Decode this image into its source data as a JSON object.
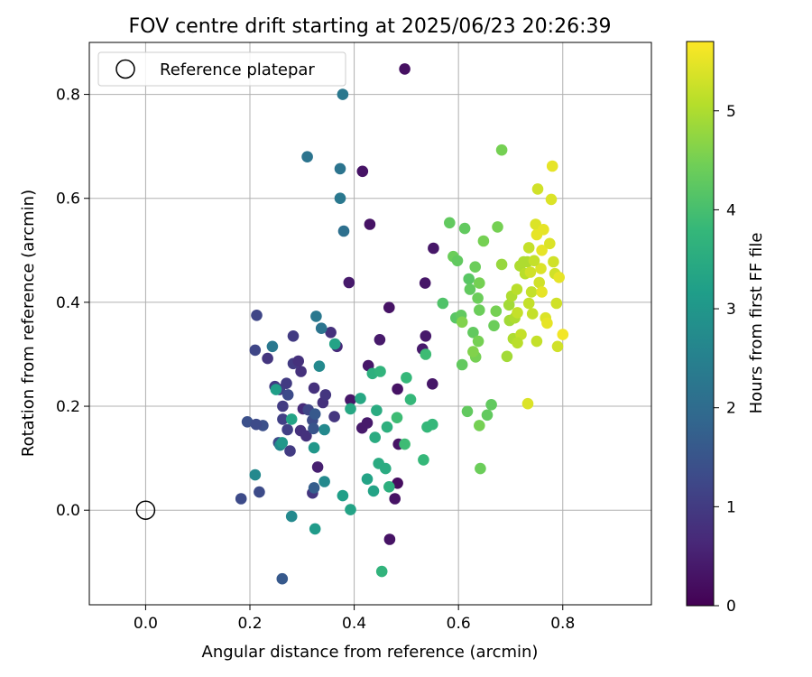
{
  "chart_data": {
    "type": "scatter",
    "title": "FOV centre drift starting at 2025/06/23 20:26:39",
    "xlabel": "Angular distance from reference (arcmin)",
    "ylabel": "Rotation from reference (arcmin)",
    "xlim": [
      -0.108,
      0.97
    ],
    "ylim": [
      -0.182,
      0.9
    ],
    "xticks": [
      "0.0",
      "0.2",
      "0.4",
      "0.6",
      "0.8"
    ],
    "yticks": [
      "0.0",
      "0.2",
      "0.4",
      "0.6",
      "0.8"
    ],
    "xtick_values": [
      0.0,
      0.2,
      0.4,
      0.6,
      0.8
    ],
    "ytick_values": [
      0.0,
      0.2,
      0.4,
      0.6,
      0.8
    ],
    "grid": true,
    "legend": {
      "placement": "top-left",
      "label": "Reference platepar",
      "marker": "open-circle"
    },
    "reference_point": {
      "x": 0.0,
      "y": 0.0
    },
    "colorbar": {
      "label": "Hours from first FF file",
      "colormap": "viridis",
      "range": [
        0,
        5.7
      ],
      "ticks": [
        "0",
        "1",
        "2",
        "3",
        "4",
        "5"
      ],
      "tick_values": [
        0,
        1,
        2,
        3,
        4,
        5
      ]
    },
    "colors": [
      "#440154",
      "#482878",
      "#3e4989",
      "#31688e",
      "#26828e",
      "#1f9e89",
      "#35b779",
      "#6ece58",
      "#b5de2b",
      "#fde725"
    ],
    "points": [
      [
        0.497,
        0.849,
        0.25
      ],
      [
        0.416,
        0.652,
        0.3
      ],
      [
        0.43,
        0.55,
        0.3
      ],
      [
        0.39,
        0.438,
        0.4
      ],
      [
        0.467,
        0.39,
        0.3
      ],
      [
        0.552,
        0.504,
        0.35
      ],
      [
        0.536,
        0.437,
        0.35
      ],
      [
        0.427,
        0.278,
        0.35
      ],
      [
        0.449,
        0.328,
        0.4
      ],
      [
        0.531,
        0.31,
        0.4
      ],
      [
        0.537,
        0.335,
        0.4
      ],
      [
        0.55,
        0.243,
        0.35
      ],
      [
        0.483,
        0.233,
        0.3
      ],
      [
        0.393,
        0.212,
        0.35
      ],
      [
        0.415,
        0.158,
        0.4
      ],
      [
        0.425,
        0.168,
        0.4
      ],
      [
        0.485,
        0.127,
        0.3
      ],
      [
        0.483,
        0.052,
        0.2
      ],
      [
        0.478,
        0.022,
        0.3
      ],
      [
        0.468,
        -0.056,
        0.3
      ],
      [
        0.367,
        0.315,
        0.7
      ],
      [
        0.355,
        0.342,
        0.8
      ],
      [
        0.34,
        0.207,
        0.8
      ],
      [
        0.345,
        0.222,
        0.9
      ],
      [
        0.362,
        0.18,
        0.9
      ],
      [
        0.323,
        0.235,
        0.8
      ],
      [
        0.33,
        0.083,
        0.5
      ],
      [
        0.32,
        0.033,
        0.9
      ],
      [
        0.213,
        0.375,
        1.2
      ],
      [
        0.21,
        0.308,
        1.2
      ],
      [
        0.225,
        0.163,
        1.4
      ],
      [
        0.234,
        0.292,
        0.9
      ],
      [
        0.248,
        0.238,
        1.0
      ],
      [
        0.257,
        0.232,
        1.1
      ],
      [
        0.263,
        0.2,
        1.0
      ],
      [
        0.27,
        0.244,
        1.0
      ],
      [
        0.273,
        0.222,
        1.3
      ],
      [
        0.263,
        0.175,
        1.1
      ],
      [
        0.255,
        0.13,
        1.3
      ],
      [
        0.272,
        0.155,
        1.1
      ],
      [
        0.277,
        0.114,
        1.0
      ],
      [
        0.283,
        0.282,
        1.0
      ],
      [
        0.283,
        0.335,
        1.0
      ],
      [
        0.293,
        0.287,
        0.8
      ],
      [
        0.298,
        0.267,
        0.8
      ],
      [
        0.302,
        0.195,
        0.7
      ],
      [
        0.297,
        0.153,
        0.8
      ],
      [
        0.308,
        0.143,
        0.8
      ],
      [
        0.312,
        0.193,
        1.2
      ],
      [
        0.32,
        0.173,
        1.3
      ],
      [
        0.322,
        0.157,
        1.5
      ],
      [
        0.325,
        0.185,
        1.6
      ],
      [
        0.195,
        0.17,
        1.4
      ],
      [
        0.212,
        0.165,
        1.3
      ],
      [
        0.218,
        0.035,
        1.3
      ],
      [
        0.183,
        0.022,
        1.3
      ],
      [
        0.262,
        -0.132,
        1.6
      ],
      [
        0.323,
        0.043,
        1.7
      ],
      [
        0.31,
        0.68,
        2.2
      ],
      [
        0.378,
        0.8,
        2.3
      ],
      [
        0.373,
        0.657,
        2.2
      ],
      [
        0.373,
        0.6,
        2.3
      ],
      [
        0.38,
        0.537,
        2.1
      ],
      [
        0.243,
        0.315,
        2.3
      ],
      [
        0.327,
        0.373,
        2.3
      ],
      [
        0.337,
        0.35,
        2.2
      ],
      [
        0.333,
        0.277,
        2.7
      ],
      [
        0.21,
        0.068,
        2.7
      ],
      [
        0.258,
        0.125,
        2.7
      ],
      [
        0.262,
        0.13,
        3.0
      ],
      [
        0.28,
        0.175,
        3.3
      ],
      [
        0.25,
        0.232,
        3.2
      ],
      [
        0.323,
        0.12,
        3.0
      ],
      [
        0.343,
        0.155,
        2.7
      ],
      [
        0.343,
        0.055,
        2.7
      ],
      [
        0.28,
        -0.012,
        2.7
      ],
      [
        0.325,
        -0.036,
        3.1
      ],
      [
        0.378,
        0.028,
        3.2
      ],
      [
        0.393,
        0.001,
        3.3
      ],
      [
        0.363,
        0.32,
        3.3
      ],
      [
        0.393,
        0.195,
        3.4
      ],
      [
        0.412,
        0.215,
        3.4
      ],
      [
        0.435,
        0.263,
        3.6
      ],
      [
        0.45,
        0.267,
        3.7
      ],
      [
        0.44,
        0.14,
        3.5
      ],
      [
        0.443,
        0.192,
        3.5
      ],
      [
        0.463,
        0.16,
        3.6
      ],
      [
        0.447,
        0.09,
        3.5
      ],
      [
        0.425,
        0.06,
        3.3
      ],
      [
        0.437,
        0.037,
        3.3
      ],
      [
        0.46,
        0.08,
        3.5
      ],
      [
        0.467,
        0.045,
        3.6
      ],
      [
        0.453,
        -0.118,
        3.7
      ],
      [
        0.482,
        0.178,
        3.9
      ],
      [
        0.497,
        0.127,
        3.9
      ],
      [
        0.5,
        0.255,
        3.8
      ],
      [
        0.508,
        0.213,
        3.8
      ],
      [
        0.533,
        0.097,
        3.8
      ],
      [
        0.537,
        0.3,
        3.9
      ],
      [
        0.54,
        0.16,
        3.8
      ],
      [
        0.55,
        0.165,
        3.8
      ],
      [
        0.57,
        0.398,
        4.1
      ],
      [
        0.583,
        0.553,
        4.3
      ],
      [
        0.595,
        0.37,
        4.2
      ],
      [
        0.605,
        0.375,
        4.3
      ],
      [
        0.59,
        0.488,
        4.4
      ],
      [
        0.598,
        0.48,
        4.3
      ],
      [
        0.612,
        0.542,
        4.3
      ],
      [
        0.607,
        0.28,
        4.3
      ],
      [
        0.617,
        0.19,
        4.3
      ],
      [
        0.62,
        0.445,
        4.2
      ],
      [
        0.622,
        0.425,
        4.3
      ],
      [
        0.628,
        0.342,
        4.3
      ],
      [
        0.632,
        0.468,
        4.4
      ],
      [
        0.64,
        0.437,
        4.5
      ],
      [
        0.637,
        0.408,
        4.4
      ],
      [
        0.64,
        0.385,
        4.4
      ],
      [
        0.638,
        0.325,
        4.5
      ],
      [
        0.633,
        0.295,
        4.5
      ],
      [
        0.628,
        0.305,
        4.6
      ],
      [
        0.64,
        0.163,
        4.5
      ],
      [
        0.642,
        0.08,
        4.4
      ],
      [
        0.648,
        0.518,
        4.5
      ],
      [
        0.655,
        0.183,
        4.3
      ],
      [
        0.663,
        0.203,
        4.3
      ],
      [
        0.668,
        0.355,
        4.4
      ],
      [
        0.672,
        0.383,
        4.5
      ],
      [
        0.675,
        0.545,
        4.5
      ],
      [
        0.683,
        0.693,
        4.5
      ],
      [
        0.683,
        0.473,
        4.8
      ],
      [
        0.693,
        0.296,
        4.9
      ],
      [
        0.607,
        0.362,
        4.6
      ],
      [
        0.697,
        0.395,
        4.9
      ],
      [
        0.698,
        0.365,
        4.9
      ],
      [
        0.702,
        0.412,
        5.0
      ],
      [
        0.705,
        0.33,
        5.0
      ],
      [
        0.708,
        0.37,
        5.0
      ],
      [
        0.712,
        0.425,
        5.1
      ],
      [
        0.713,
        0.38,
        5.2
      ],
      [
        0.72,
        0.338,
        5.2
      ],
      [
        0.718,
        0.47,
        5.0
      ],
      [
        0.725,
        0.478,
        5.0
      ],
      [
        0.728,
        0.455,
        5.1
      ],
      [
        0.732,
        0.478,
        5.0
      ],
      [
        0.735,
        0.505,
        5.2
      ],
      [
        0.738,
        0.458,
        5.3
      ],
      [
        0.74,
        0.42,
        5.2
      ],
      [
        0.735,
        0.398,
        5.2
      ],
      [
        0.733,
        0.205,
        5.4
      ],
      [
        0.742,
        0.378,
        5.2
      ],
      [
        0.748,
        0.55,
        5.4
      ],
      [
        0.75,
        0.53,
        5.5
      ],
      [
        0.752,
        0.618,
        5.3
      ],
      [
        0.75,
        0.325,
        5.2
      ],
      [
        0.755,
        0.438,
        5.3
      ],
      [
        0.758,
        0.465,
        5.4
      ],
      [
        0.76,
        0.5,
        5.5
      ],
      [
        0.763,
        0.54,
        5.5
      ],
      [
        0.76,
        0.42,
        5.5
      ],
      [
        0.767,
        0.37,
        5.4
      ],
      [
        0.77,
        0.36,
        5.5
      ],
      [
        0.775,
        0.513,
        5.4
      ],
      [
        0.778,
        0.598,
        5.4
      ],
      [
        0.78,
        0.662,
        5.5
      ],
      [
        0.782,
        0.478,
        5.3
      ],
      [
        0.785,
        0.455,
        5.3
      ],
      [
        0.788,
        0.398,
        5.3
      ],
      [
        0.79,
        0.315,
        5.3
      ],
      [
        0.793,
        0.448,
        5.5
      ],
      [
        0.8,
        0.338,
        5.6
      ],
      [
        0.713,
        0.322,
        5.1
      ],
      [
        0.745,
        0.48,
        5.2
      ]
    ]
  }
}
